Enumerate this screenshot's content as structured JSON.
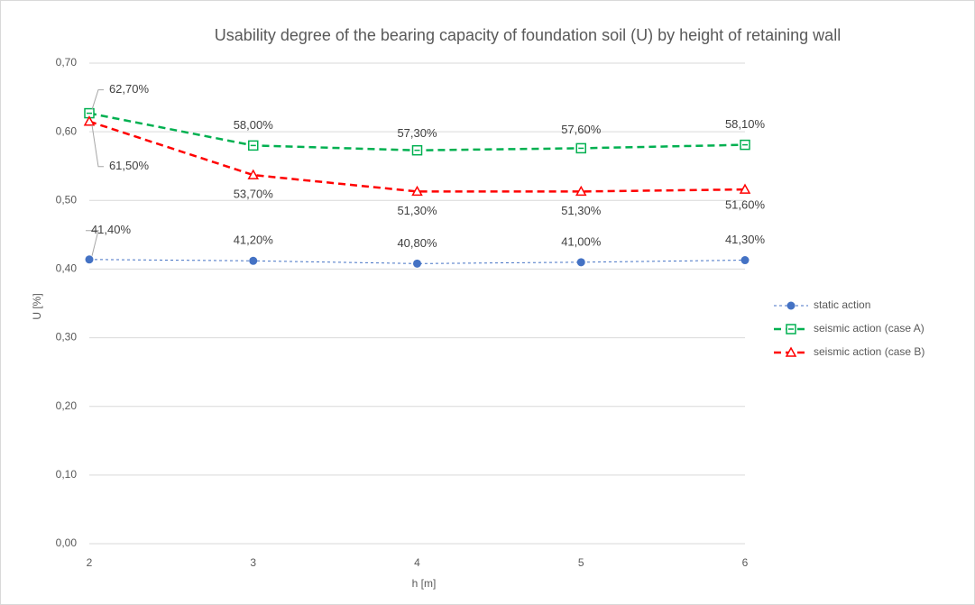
{
  "chart_data": {
    "type": "line",
    "title": "Usability degree of the bearing capacity of foundation soil (U) by height of retaining wall",
    "xlabel": "h [m]",
    "ylabel": "U [%]",
    "x": [
      2,
      3,
      4,
      5,
      6
    ],
    "xlim": [
      2,
      6
    ],
    "xticks": [
      2,
      3,
      4,
      5,
      6
    ],
    "ylim": [
      0,
      0.7
    ],
    "yticks": [
      {
        "value": 0,
        "label": "0,00"
      },
      {
        "value": 0.1,
        "label": "0,10"
      },
      {
        "value": 0.2,
        "label": "0,20"
      },
      {
        "value": 0.3,
        "label": "0,30"
      },
      {
        "value": 0.4,
        "label": "0,40"
      },
      {
        "value": 0.5,
        "label": "0,50"
      },
      {
        "value": 0.6,
        "label": "0,60"
      },
      {
        "value": 0.7,
        "label": "0,70"
      }
    ],
    "grid": true,
    "legend": "right",
    "series": [
      {
        "name": "static action",
        "color": "#4472c4",
        "marker": "circle",
        "values": [
          0.414,
          0.412,
          0.408,
          0.41,
          0.413
        ],
        "value_labels": [
          "41,40%",
          "41,20%",
          "40,80%",
          "41,00%",
          "41,30%"
        ]
      },
      {
        "name": "seismic action (case A)",
        "color": "#00b050",
        "marker": "square",
        "values": [
          0.627,
          0.58,
          0.573,
          0.576,
          0.581
        ],
        "value_labels": [
          "62,70%",
          "58,00%",
          "57,30%",
          "57,60%",
          "58,10%"
        ]
      },
      {
        "name": "seismic action (case B)",
        "color": "#ff0000",
        "marker": "triangle",
        "values": [
          0.615,
          0.537,
          0.513,
          0.513,
          0.516
        ],
        "value_labels": [
          "61,50%",
          "53,70%",
          "51,30%",
          "51,30%",
          "51,60%"
        ]
      }
    ]
  }
}
